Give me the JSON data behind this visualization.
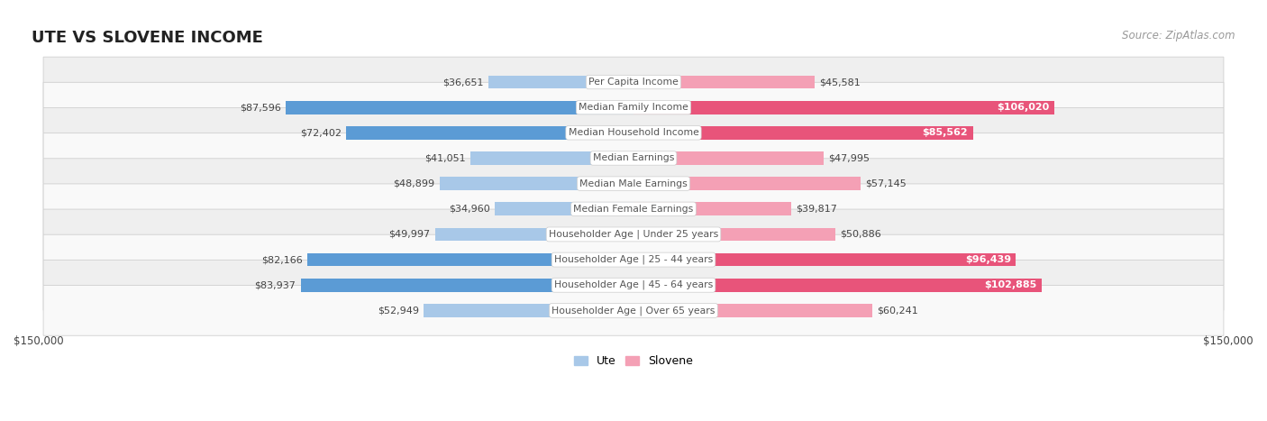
{
  "title": "UTE VS SLOVENE INCOME",
  "source": "Source: ZipAtlas.com",
  "categories": [
    "Per Capita Income",
    "Median Family Income",
    "Median Household Income",
    "Median Earnings",
    "Median Male Earnings",
    "Median Female Earnings",
    "Householder Age | Under 25 years",
    "Householder Age | 25 - 44 years",
    "Householder Age | 45 - 64 years",
    "Householder Age | Over 65 years"
  ],
  "ute_values": [
    36651,
    87596,
    72402,
    41051,
    48899,
    34960,
    49997,
    82166,
    83937,
    52949
  ],
  "slovene_values": [
    45581,
    106020,
    85562,
    47995,
    57145,
    39817,
    50886,
    96439,
    102885,
    60241
  ],
  "ute_labels": [
    "$36,651",
    "$87,596",
    "$72,402",
    "$41,051",
    "$48,899",
    "$34,960",
    "$49,997",
    "$82,166",
    "$83,937",
    "$52,949"
  ],
  "slovene_labels": [
    "$45,581",
    "$106,020",
    "$85,562",
    "$47,995",
    "$57,145",
    "$39,817",
    "$50,886",
    "$96,439",
    "$102,885",
    "$60,241"
  ],
  "ute_color_light": "#a8c8e8",
  "ute_color_dark": "#5b9bd5",
  "slovene_color_light": "#f4a0b5",
  "slovene_color_dark": "#e8547a",
  "label_color_dark": "#444444",
  "label_color_white": "#ffffff",
  "center_label_color": "#555555",
  "row_bg_even": "#efefef",
  "row_bg_odd": "#f9f9f9",
  "row_border_color": "#d0d0d0",
  "axis_max": 150000,
  "title_fontsize": 13,
  "source_fontsize": 8.5,
  "bar_height": 0.52,
  "background_color": "#ffffff",
  "legend_label_ute": "Ute",
  "legend_label_slovene": "Slovene"
}
